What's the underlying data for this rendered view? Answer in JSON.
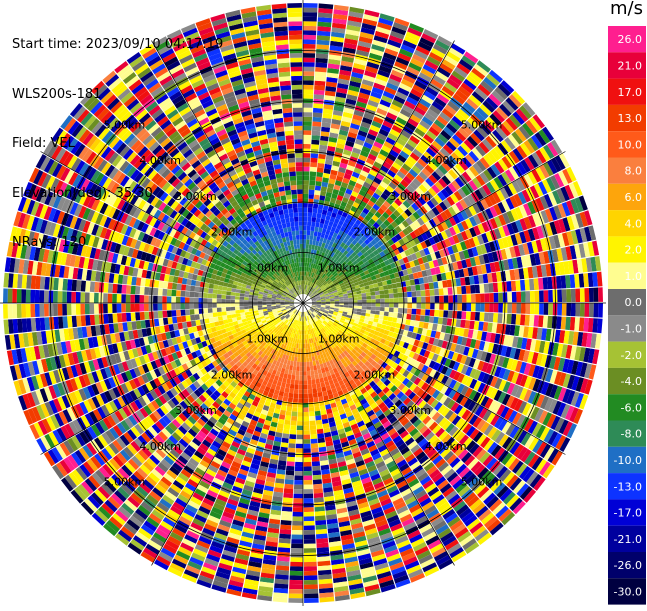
{
  "header": {
    "start_time": "Start time: 2023/09/10 04:17:19",
    "instrument": "WLS200s-181",
    "field": "Field: VEL",
    "elevation": "Elevation(deg): 35.30",
    "nrays": "NRays: 120"
  },
  "colorbar": {
    "unit": "m/s",
    "levels": [
      {
        "label": "26.0",
        "color": "#ff1f8f"
      },
      {
        "label": "21.0",
        "color": "#e8003a"
      },
      {
        "label": "17.0",
        "color": "#f01010"
      },
      {
        "label": "13.0",
        "color": "#f23c00"
      },
      {
        "label": "10.0",
        "color": "#ff5a1a"
      },
      {
        "label": "8.0",
        "color": "#fa7f3e"
      },
      {
        "label": "6.0",
        "color": "#fda50c"
      },
      {
        "label": "4.0",
        "color": "#ffd400"
      },
      {
        "label": "2.0",
        "color": "#fff400"
      },
      {
        "label": "1.0",
        "color": "#fffd90"
      },
      {
        "label": "0.0",
        "color": "#6d6d6d"
      },
      {
        "label": "-1.0",
        "color": "#8a8a8a"
      },
      {
        "label": "-2.0",
        "color": "#a6c234"
      },
      {
        "label": "-4.0",
        "color": "#6b8e23"
      },
      {
        "label": "-6.0",
        "color": "#228b22"
      },
      {
        "label": "-8.0",
        "color": "#2e8b57"
      },
      {
        "label": "-10.0",
        "color": "#1f6fc5"
      },
      {
        "label": "-13.0",
        "color": "#0d33ff"
      },
      {
        "label": "-17.0",
        "color": "#0000d6"
      },
      {
        "label": "-21.0",
        "color": "#00009e"
      },
      {
        "label": "-26.0",
        "color": "#00006b"
      },
      {
        "label": "-30.0",
        "color": "#000040"
      }
    ]
  },
  "chart_data": {
    "type": "heatmap",
    "projection": "polar PPI",
    "field": "VEL",
    "units": "m/s",
    "elevation_deg": 35.3,
    "nrays": 120,
    "range_rings_km": [
      1.0,
      2.0,
      3.0,
      4.0,
      5.0
    ],
    "ring_labels": [
      "1.00km",
      "2.00km",
      "3.00km",
      "4.00km",
      "5.00km"
    ],
    "max_range_km": 6.0,
    "radial_spokes_deg": [
      0,
      30,
      60,
      90,
      120,
      150,
      180,
      210,
      240,
      270,
      300,
      330
    ],
    "pattern": {
      "north_core_mps": -13,
      "south_core_mps": 13,
      "near_field_note": "negative (blue/green) velocities north of site, positive (orange/yellow) south, noisy multicolor beyond ~2.5 km"
    }
  }
}
